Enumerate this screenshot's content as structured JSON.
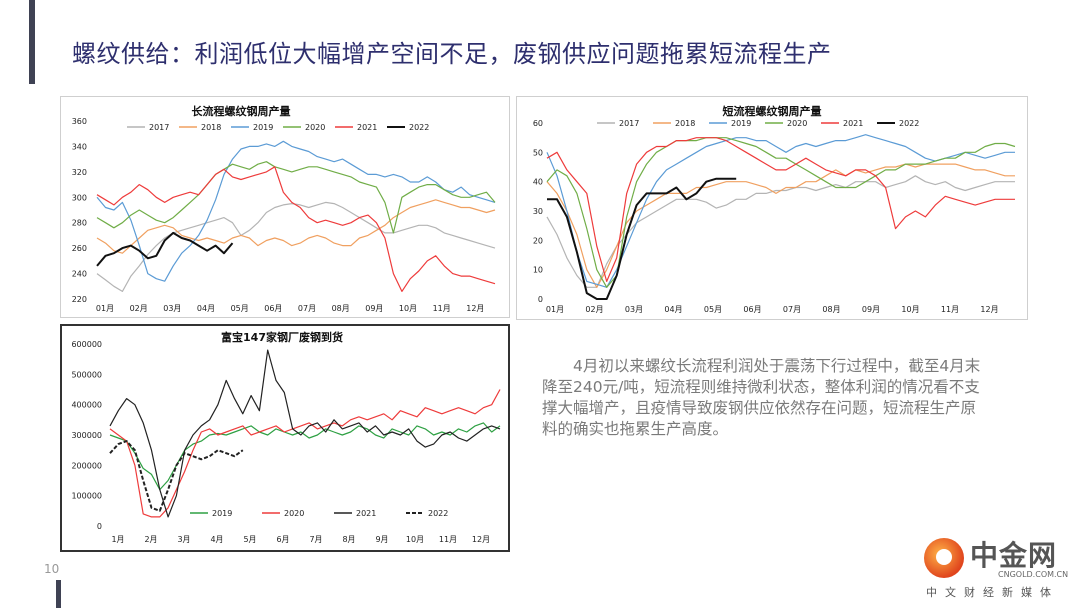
{
  "slide": {
    "title": "螺纹供给：利润低位大幅增产空间不足，废钢供应问题拖累短流程生产",
    "commentary": "4月初以来螺纹长流程利润处于震荡下行过程中，截至4月末降至240元/吨，短流程则维持微利状态，整体利润的情况看不支撑大幅增产，且疫情导致废钢供应依然存在问题，短流程生产原料的确实也拖累生产高度。",
    "page_number": "10"
  },
  "logo": {
    "name": "中金网",
    "domain": "CNGOLD.COM.CN",
    "tagline": "中文财经新媒体"
  },
  "colors": {
    "2017": "#b4b4b4",
    "2018": "#f0a060",
    "2019": "#5b9bd5",
    "2020": "#70ad47",
    "2021": "#ee3b3b",
    "2022": "#111111",
    "title": "#2e2f6e"
  },
  "chart_data": [
    {
      "type": "line",
      "title": "长流程螺纹钢周产量",
      "x_ticks": [
        "01月",
        "02月",
        "03月",
        "04月",
        "05月",
        "06月",
        "07月",
        "08月",
        "09月",
        "10月",
        "11月",
        "12月"
      ],
      "ylim": [
        220,
        360
      ],
      "y_ticks": [
        220,
        240,
        260,
        280,
        300,
        320,
        340,
        360
      ],
      "legend": "top",
      "x_unit": "week",
      "series": [
        {
          "name": "2017",
          "color": "#b4b4b4",
          "values": [
            240,
            235,
            230,
            226,
            238,
            246,
            255,
            262,
            268,
            272,
            274,
            276,
            278,
            280,
            282,
            284,
            280,
            270,
            274,
            280,
            288,
            292,
            294,
            295,
            294,
            292,
            294,
            296,
            295,
            292,
            288,
            284,
            280,
            276,
            272,
            272,
            274,
            276,
            278,
            278,
            276,
            272,
            270,
            268,
            266,
            264,
            262,
            260
          ]
        },
        {
          "name": "2018",
          "color": "#f0a060",
          "values": [
            268,
            264,
            258,
            256,
            262,
            268,
            274,
            276,
            278,
            276,
            270,
            268,
            266,
            268,
            266,
            264,
            268,
            270,
            268,
            262,
            266,
            268,
            266,
            262,
            264,
            268,
            270,
            268,
            264,
            262,
            262,
            268,
            270,
            274,
            278,
            284,
            288,
            292,
            294,
            296,
            298,
            296,
            294,
            292,
            292,
            290,
            288,
            290
          ]
        },
        {
          "name": "2019",
          "color": "#5b9bd5",
          "values": [
            300,
            292,
            290,
            296,
            282,
            262,
            240,
            236,
            234,
            246,
            256,
            262,
            270,
            282,
            298,
            318,
            330,
            338,
            340,
            340,
            342,
            340,
            344,
            340,
            338,
            336,
            332,
            330,
            328,
            330,
            326,
            322,
            318,
            318,
            316,
            318,
            316,
            312,
            312,
            316,
            312,
            306,
            304,
            308,
            302,
            300,
            298,
            296
          ]
        },
        {
          "name": "2020",
          "color": "#70ad47",
          "values": [
            284,
            280,
            276,
            280,
            286,
            290,
            286,
            282,
            280,
            284,
            290,
            296,
            302,
            310,
            318,
            322,
            326,
            324,
            322,
            326,
            328,
            324,
            322,
            320,
            322,
            324,
            324,
            322,
            320,
            318,
            316,
            312,
            310,
            308,
            296,
            272,
            300,
            304,
            308,
            310,
            310,
            306,
            302,
            300,
            300,
            302,
            304,
            296
          ]
        },
        {
          "name": "2021",
          "color": "#ee3b3b",
          "values": [
            302,
            298,
            294,
            300,
            304,
            310,
            306,
            300,
            296,
            300,
            302,
            304,
            302,
            310,
            318,
            322,
            316,
            314,
            316,
            318,
            320,
            324,
            304,
            296,
            292,
            284,
            280,
            282,
            280,
            278,
            280,
            284,
            286,
            280,
            268,
            240,
            226,
            236,
            242,
            250,
            254,
            246,
            240,
            238,
            238,
            236,
            234,
            232
          ]
        },
        {
          "name": "2022",
          "color": "#111111",
          "values": [
            246,
            254,
            256,
            260,
            262,
            258,
            252,
            254,
            266,
            272,
            268,
            266,
            262,
            258,
            262,
            256,
            264
          ]
        }
      ]
    },
    {
      "type": "line",
      "title": "短流程螺纹钢周产量",
      "x_ticks": [
        "01月",
        "02月",
        "03月",
        "04月",
        "05月",
        "06月",
        "07月",
        "08月",
        "09月",
        "10月",
        "11月",
        "12月"
      ],
      "ylim": [
        0,
        60
      ],
      "y_ticks": [
        0,
        10,
        20,
        30,
        40,
        50,
        60
      ],
      "legend": "top",
      "x_unit": "week",
      "series": [
        {
          "name": "2017",
          "color": "#b4b4b4",
          "values": [
            28,
            22,
            14,
            8,
            4,
            4,
            12,
            18,
            22,
            26,
            28,
            30,
            32,
            34,
            34,
            34,
            33,
            31,
            32,
            34,
            34,
            36,
            36,
            37,
            37,
            38,
            38,
            37,
            38,
            39,
            38,
            40,
            40,
            40,
            38,
            39,
            40,
            42,
            40,
            39,
            40,
            38,
            37,
            38,
            39,
            40,
            40,
            40
          ]
        },
        {
          "name": "2018",
          "color": "#f0a060",
          "values": [
            40,
            36,
            30,
            22,
            10,
            4,
            10,
            18,
            26,
            30,
            32,
            34,
            36,
            36,
            36,
            38,
            38,
            39,
            40,
            40,
            40,
            39,
            38,
            36,
            38,
            38,
            40,
            40,
            42,
            44,
            42,
            44,
            43,
            44,
            45,
            45,
            46,
            45,
            46,
            46,
            46,
            46,
            45,
            44,
            44,
            43,
            42,
            42
          ]
        },
        {
          "name": "2019",
          "color": "#5b9bd5",
          "values": [
            50,
            42,
            30,
            16,
            6,
            5,
            4,
            10,
            18,
            26,
            34,
            40,
            44,
            46,
            48,
            50,
            52,
            53,
            54,
            55,
            55,
            54,
            54,
            52,
            50,
            52,
            53,
            52,
            53,
            54,
            54,
            55,
            56,
            55,
            54,
            53,
            52,
            50,
            48,
            47,
            48,
            49,
            50,
            49,
            48,
            49,
            50,
            50
          ]
        },
        {
          "name": "2020",
          "color": "#70ad47",
          "values": [
            40,
            44,
            42,
            36,
            24,
            10,
            4,
            8,
            28,
            40,
            46,
            50,
            52,
            54,
            54,
            54,
            55,
            55,
            55,
            54,
            53,
            52,
            50,
            48,
            48,
            46,
            44,
            42,
            40,
            38,
            38,
            38,
            40,
            42,
            44,
            44,
            46,
            46,
            46,
            47,
            48,
            48,
            50,
            50,
            52,
            53,
            53,
            52
          ]
        },
        {
          "name": "2021",
          "color": "#ee3b3b",
          "values": [
            48,
            50,
            44,
            40,
            36,
            18,
            6,
            14,
            36,
            46,
            50,
            52,
            52,
            54,
            54,
            55,
            55,
            55,
            54,
            52,
            50,
            48,
            46,
            44,
            44,
            46,
            48,
            46,
            44,
            43,
            42,
            44,
            44,
            42,
            38,
            24,
            28,
            30,
            28,
            32,
            35,
            34,
            33,
            32,
            33,
            34,
            34,
            34
          ]
        },
        {
          "name": "2022",
          "color": "#111111",
          "values": [
            34,
            34,
            28,
            16,
            2,
            0,
            0,
            8,
            22,
            32,
            36,
            36,
            36,
            38,
            34,
            36,
            40,
            41,
            41,
            41
          ]
        }
      ]
    },
    {
      "type": "line",
      "title": "富宝147家钢厂废钢到货",
      "x_ticks": [
        "1月",
        "2月",
        "3月",
        "4月",
        "5月",
        "6月",
        "7月",
        "8月",
        "9月",
        "10月",
        "11月",
        "12月"
      ],
      "ylim": [
        0,
        600000
      ],
      "y_ticks": [
        0,
        100000,
        200000,
        300000,
        400000,
        500000,
        600000
      ],
      "legend": "bottom",
      "x_unit": "day",
      "series": [
        {
          "name": "2019",
          "color": "#2ea043",
          "values": [
            300000,
            290000,
            280000,
            240000,
            190000,
            170000,
            120000,
            150000,
            200000,
            250000,
            270000,
            280000,
            300000,
            305000,
            300000,
            310000,
            320000,
            330000,
            310000,
            300000,
            320000,
            310000,
            300000,
            310000,
            290000,
            300000,
            320000,
            310000,
            300000,
            310000,
            330000,
            320000,
            300000,
            290000,
            320000,
            310000,
            300000,
            330000,
            320000,
            300000,
            310000,
            300000,
            320000,
            310000,
            330000,
            340000,
            310000,
            330000
          ]
        },
        {
          "name": "2020",
          "color": "#ee3b3b",
          "values": [
            320000,
            300000,
            280000,
            200000,
            40000,
            30000,
            30000,
            60000,
            120000,
            180000,
            250000,
            310000,
            320000,
            300000,
            310000,
            320000,
            330000,
            300000,
            310000,
            320000,
            330000,
            310000,
            320000,
            330000,
            340000,
            320000,
            330000,
            340000,
            330000,
            350000,
            360000,
            350000,
            360000,
            370000,
            350000,
            380000,
            370000,
            360000,
            390000,
            380000,
            370000,
            380000,
            390000,
            380000,
            370000,
            390000,
            400000,
            450000
          ]
        },
        {
          "name": "2021",
          "color": "#222222",
          "values": [
            330000,
            380000,
            420000,
            400000,
            340000,
            250000,
            120000,
            30000,
            100000,
            250000,
            300000,
            330000,
            350000,
            400000,
            480000,
            420000,
            370000,
            430000,
            380000,
            580000,
            480000,
            440000,
            320000,
            300000,
            330000,
            340000,
            310000,
            350000,
            320000,
            330000,
            340000,
            310000,
            330000,
            300000,
            310000,
            300000,
            320000,
            280000,
            260000,
            270000,
            300000,
            310000,
            290000,
            280000,
            300000,
            320000,
            330000,
            320000
          ]
        },
        {
          "name": "2022",
          "color": "#222222",
          "dash": true,
          "values": [
            240000,
            270000,
            280000,
            250000,
            150000,
            60000,
            50000,
            120000,
            200000,
            240000,
            230000,
            220000,
            230000,
            250000,
            240000,
            230000,
            250000
          ]
        }
      ]
    }
  ]
}
